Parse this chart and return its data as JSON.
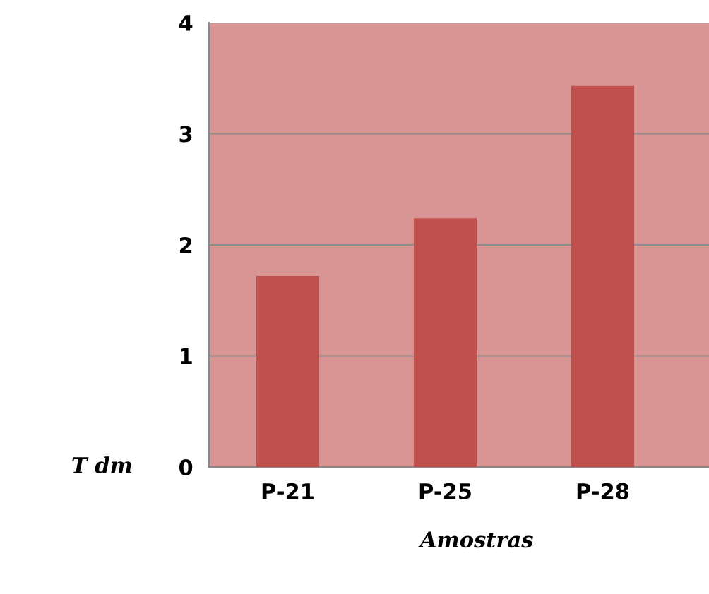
{
  "chart_data": {
    "type": "bar",
    "xlabel": "Amostras",
    "ylabel": "T dm",
    "categories": [
      "P-21",
      "P-25",
      "P-28"
    ],
    "values": [
      1.72,
      2.24,
      3.43
    ],
    "color": "#c0504d",
    "ylim": [
      0,
      4
    ],
    "yticks": [
      0,
      1,
      2,
      3,
      4
    ],
    "grid": "y"
  }
}
